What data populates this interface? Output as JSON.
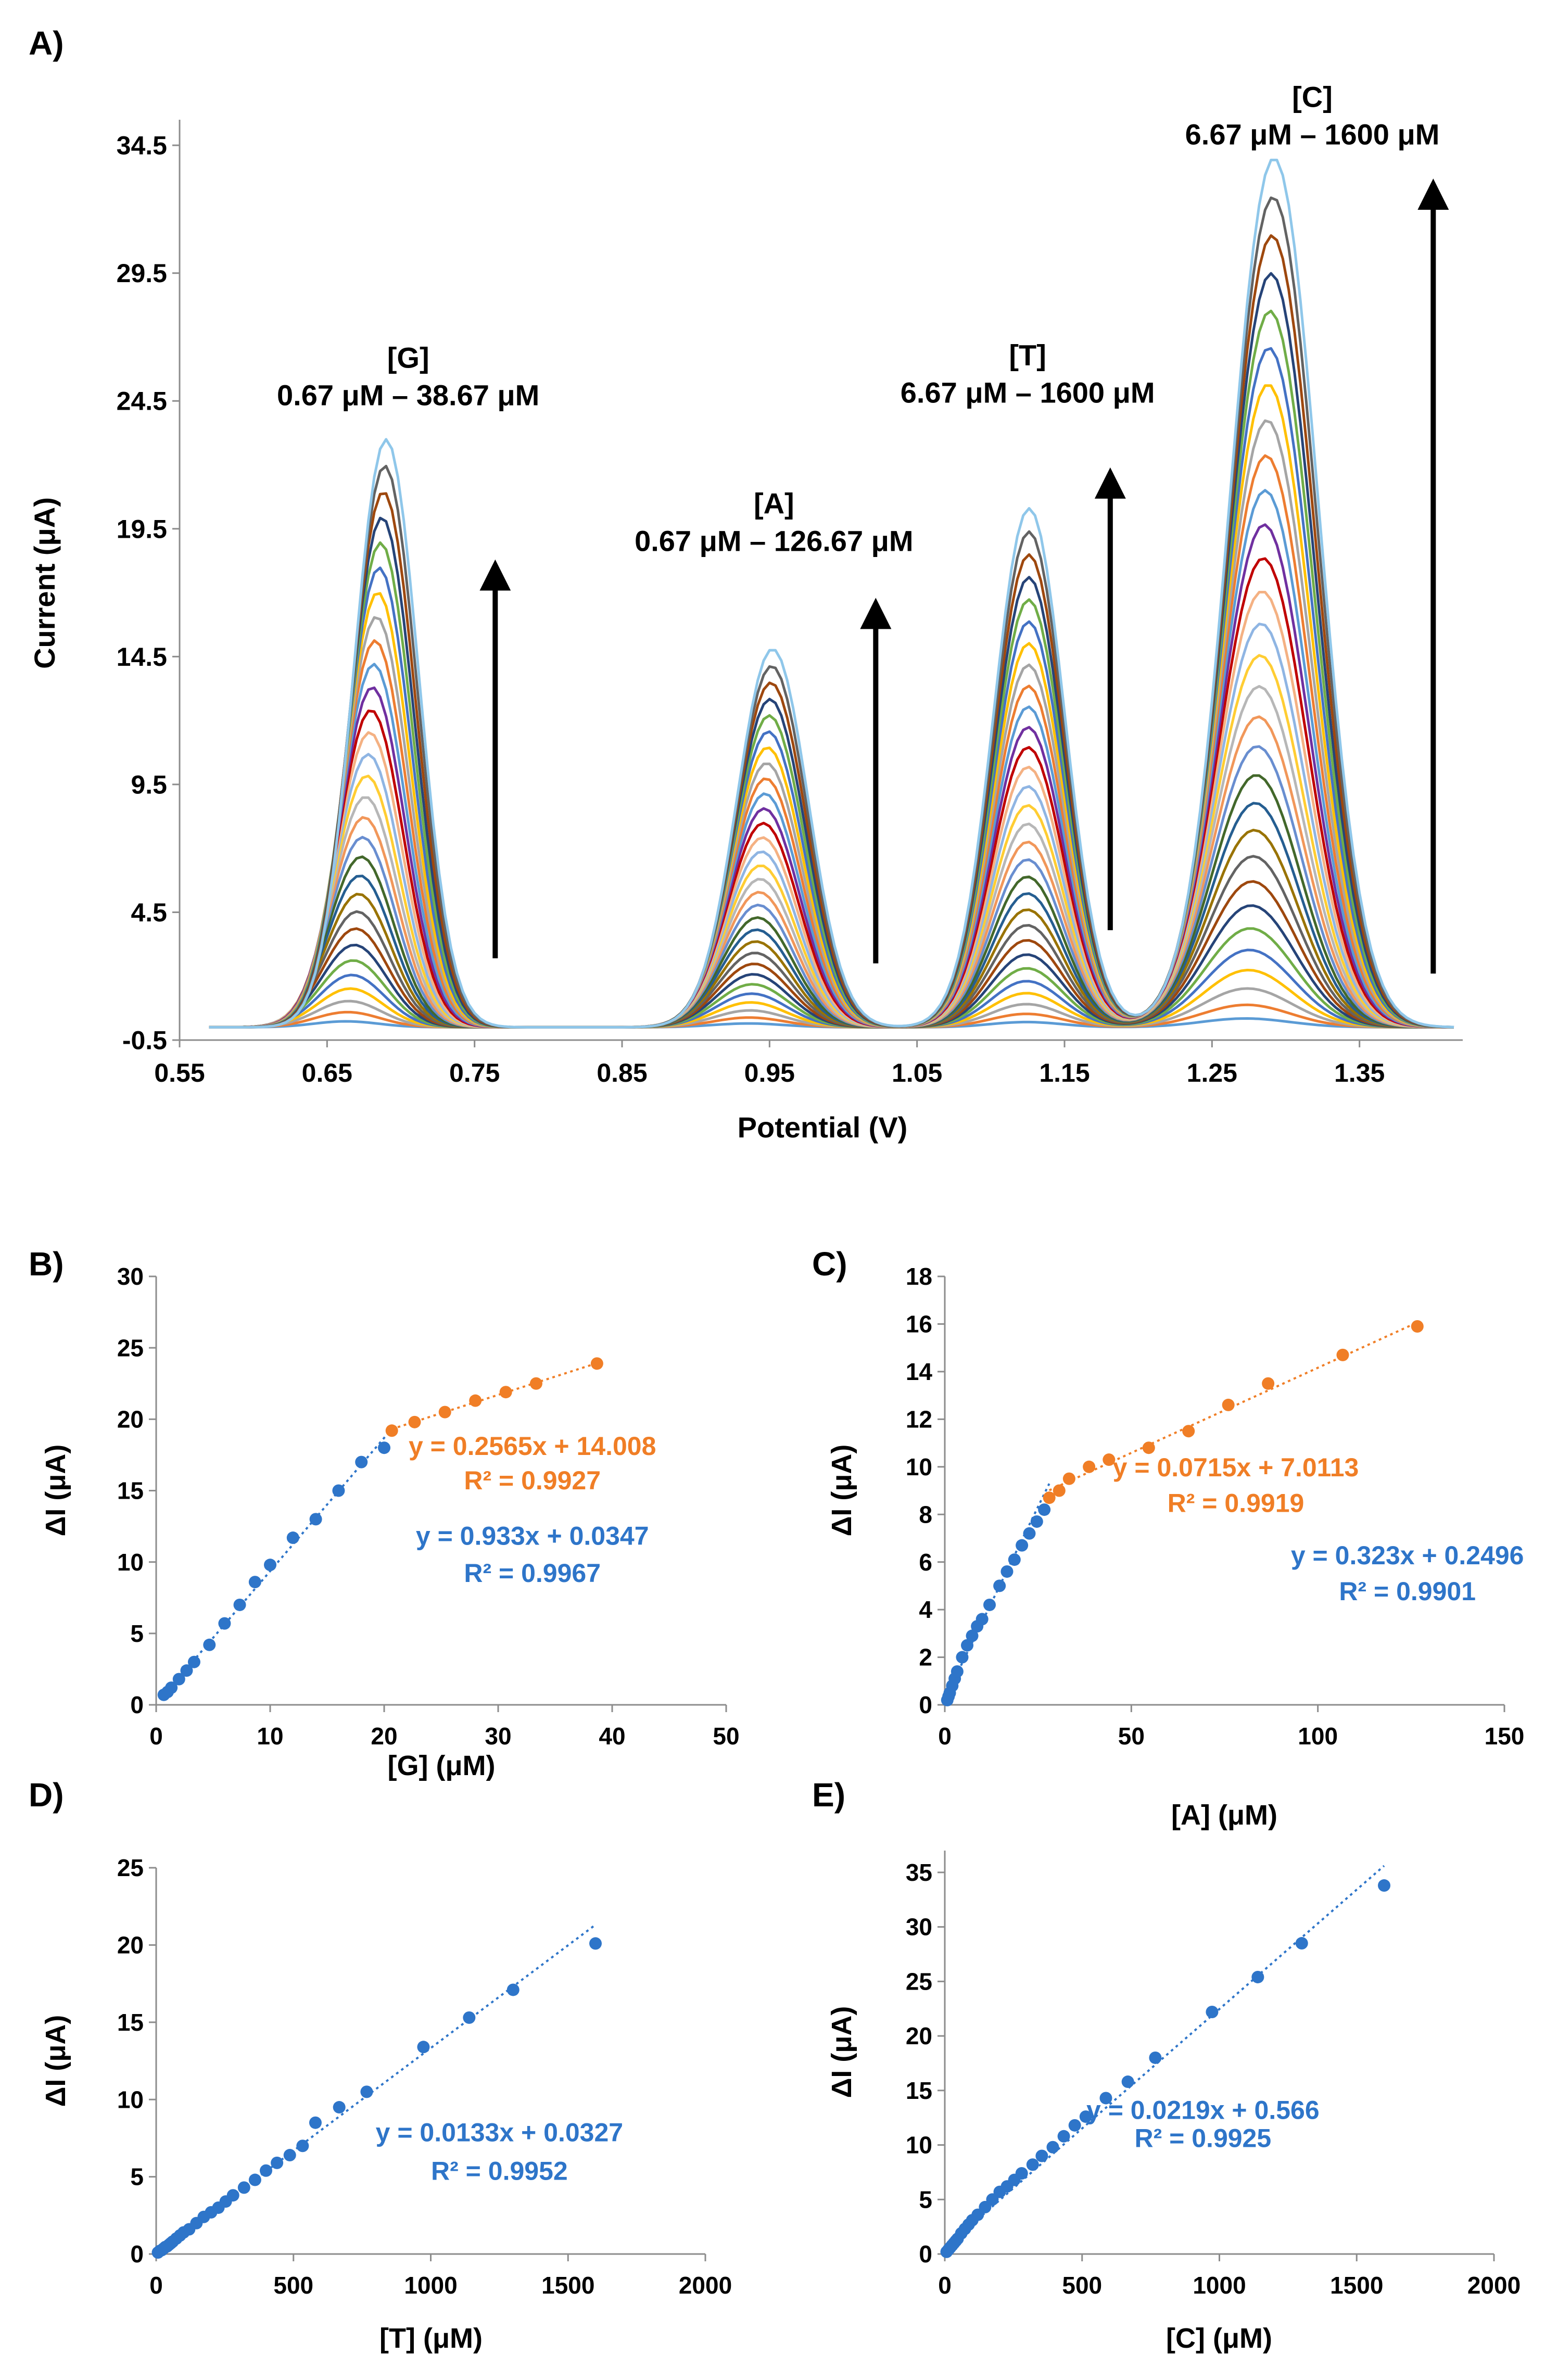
{
  "figure": {
    "panel_labels": [
      "A)",
      "B)",
      "C)",
      "D)",
      "E)"
    ]
  },
  "colors": {
    "blue": "#2E75C9",
    "orange": "#F07E26",
    "axis": "#8C8C8C",
    "text": "#000000",
    "curve_palette": [
      "#5B9BD5",
      "#ED7D31",
      "#A5A5A5",
      "#FFC000",
      "#4472C4",
      "#70AD47",
      "#264478",
      "#9E480E",
      "#636363",
      "#997300",
      "#255E91",
      "#43682B",
      "#698ED0",
      "#F1975A",
      "#B7B7B7",
      "#FFCD33",
      "#8FB5E3",
      "#F4B183",
      "#C00000",
      "#7030A0"
    ]
  },
  "chart_data": [
    {
      "id": "A",
      "type": "line",
      "panel_label": "A)",
      "title": "",
      "xlabel": "Potential (V)",
      "ylabel": "Current (μA)",
      "xlim": [
        0.55,
        1.42
      ],
      "ylim": [
        -0.5,
        35.5
      ],
      "x_ticks": [
        0.55,
        0.65,
        0.75,
        0.85,
        0.95,
        1.05,
        1.15,
        1.25,
        1.35
      ],
      "x_tick_labels": [
        "0.55",
        "0.65",
        "0.75",
        "0.85",
        "0.95",
        "1.05",
        "1.15",
        "1.25",
        "1.35"
      ],
      "y_ticks": [
        -0.5,
        4.5,
        9.5,
        14.5,
        19.5,
        24.5,
        29.5,
        34.5
      ],
      "y_tick_labels": [
        "-0.5",
        "4.5",
        "9.5",
        "14.5",
        "19.5",
        "24.5",
        "29.5",
        "34.5"
      ],
      "num_curves": 30,
      "peaks": [
        {
          "name": "G",
          "center_start": 0.662,
          "center_end": 0.69,
          "sigma": 0.022,
          "max_height": 23.0
        },
        {
          "name": "A",
          "center_start": 0.935,
          "center_end": 0.952,
          "sigma": 0.024,
          "max_height": 14.8
        },
        {
          "name": "T",
          "center_start": 1.124,
          "center_end": 1.126,
          "sigma": 0.024,
          "max_height": 20.3
        },
        {
          "name": "C",
          "center_start": 1.272,
          "center_end": 1.292,
          "sigma": 0.03,
          "max_height": 34.0
        }
      ],
      "annotations": [
        {
          "line1": "[G]",
          "line2": "0.67 μM – 38.67 μM",
          "x": 0.705,
          "y": 25.8
        },
        {
          "line1": "[A]",
          "line2": "0.67 μM – 126.67 μM",
          "x": 0.953,
          "y": 20.1
        },
        {
          "line1": "[T]",
          "line2": "6.67 μM – 1600 μM",
          "x": 1.125,
          "y": 25.9
        },
        {
          "line1": "[C]",
          "line2": "6.67 μM – 1600 μM",
          "x": 1.318,
          "y": 36.0
        }
      ],
      "arrows": [
        {
          "x": 0.764,
          "y_from": 2.7,
          "y_to": 18.3
        },
        {
          "x": 1.022,
          "y_from": 2.5,
          "y_to": 16.8
        },
        {
          "x": 1.181,
          "y_from": 3.8,
          "y_to": 21.9
        },
        {
          "x": 1.4,
          "y_from": 2.1,
          "y_to": 33.2
        }
      ]
    },
    {
      "id": "B",
      "type": "scatter",
      "panel_label": "B)",
      "xlabel": "[G] (μM)",
      "ylabel": "ΔI  (μA)",
      "xlim": [
        0,
        50
      ],
      "ylim": [
        0,
        30
      ],
      "x_ticks": [
        0,
        10,
        20,
        30,
        40,
        50
      ],
      "x_tick_labels": [
        "0",
        "10",
        "20",
        "30",
        "40",
        "50"
      ],
      "y_ticks": [
        0,
        5,
        10,
        15,
        20,
        25,
        30
      ],
      "y_tick_labels": [
        "0",
        "5",
        "10",
        "15",
        "20",
        "25",
        "30"
      ],
      "series": [
        {
          "name": "low",
          "color": "#2E75C9",
          "x": [
            0.67,
            1.0,
            1.33,
            2.0,
            2.67,
            3.33,
            4.67,
            6.0,
            7.33,
            8.67,
            10.0,
            12.0,
            14.0,
            16.0,
            18.0,
            20.0
          ],
          "y": [
            0.7,
            0.9,
            1.2,
            1.8,
            2.4,
            3.0,
            4.2,
            5.7,
            7.0,
            8.6,
            9.8,
            11.7,
            13.0,
            15.0,
            17.0,
            18.0
          ],
          "fit_x": [
            0.67,
            20.8
          ],
          "slope": 0.933,
          "intercept": 0.0347
        },
        {
          "name": "high",
          "color": "#F07E26",
          "x": [
            20.67,
            22.67,
            25.33,
            28.0,
            30.67,
            33.33,
            38.67
          ],
          "y": [
            19.2,
            19.8,
            20.5,
            21.3,
            21.9,
            22.5,
            23.9
          ],
          "fit_x": [
            20.67,
            38.67
          ],
          "slope": 0.2565,
          "intercept": 14.008
        }
      ],
      "equations": [
        {
          "line1": "y = 0.2565x + 14.008",
          "line2": "R² = 0.9927",
          "color": "#F07E26",
          "x": 33.0,
          "y1": 17.5,
          "y2": 15.1
        },
        {
          "line1": "y = 0.933x + 0.0347",
          "line2": "R² = 0.9967",
          "color": "#2E75C9",
          "x": 33.0,
          "y1": 11.2,
          "y2": 8.6
        }
      ]
    },
    {
      "id": "C",
      "type": "scatter",
      "panel_label": "C)",
      "xlabel": "[A] (μM)",
      "ylabel": "ΔI (μA)",
      "xlim": [
        0,
        150
      ],
      "ylim": [
        0,
        18
      ],
      "x_ticks": [
        0,
        50,
        100,
        150
      ],
      "x_tick_labels": [
        "0",
        "50",
        "100",
        "150"
      ],
      "y_ticks": [
        0,
        2,
        4,
        6,
        8,
        10,
        12,
        14,
        16,
        18
      ],
      "y_tick_labels": [
        "0",
        "2",
        "4",
        "6",
        "8",
        "10",
        "12",
        "14",
        "16",
        "18"
      ],
      "series": [
        {
          "name": "low",
          "color": "#2E75C9",
          "x": [
            0.67,
            1.0,
            1.33,
            2.0,
            2.67,
            3.33,
            4.67,
            6.0,
            7.33,
            8.67,
            10.0,
            12.0,
            14.67,
            16.67,
            18.67,
            20.67,
            22.67,
            24.67,
            26.67
          ],
          "y": [
            0.2,
            0.35,
            0.5,
            0.8,
            1.1,
            1.4,
            2.0,
            2.5,
            2.9,
            3.3,
            3.6,
            4.2,
            5.0,
            5.6,
            6.1,
            6.7,
            7.2,
            7.7,
            8.2
          ],
          "fit_x": [
            0.67,
            28.0
          ],
          "slope": 0.323,
          "intercept": 0.2496
        },
        {
          "name": "high",
          "color": "#F07E26",
          "x": [
            28.0,
            30.67,
            33.33,
            38.67,
            44.0,
            54.67,
            65.33,
            76.0,
            86.67,
            106.67,
            126.67
          ],
          "y": [
            8.7,
            9.0,
            9.5,
            10.0,
            10.3,
            10.8,
            11.5,
            12.6,
            13.5,
            14.7,
            15.9
          ],
          "fit_x": [
            28.0,
            126.67
          ],
          "slope": 0.0715,
          "intercept": 7.0113
        }
      ],
      "equations": [
        {
          "line1": "y = 0.0715x + 7.0113",
          "line2": "R² = 0.9919",
          "color": "#F07E26",
          "x": 78.0,
          "y1": 9.6,
          "y2": 8.1
        },
        {
          "line1": "y = 0.323x + 0.2496",
          "line2": "R² = 0.9901",
          "color": "#2E75C9",
          "x": 124.0,
          "y1": 5.9,
          "y2": 4.4
        }
      ]
    },
    {
      "id": "D",
      "type": "scatter",
      "panel_label": "D)",
      "xlabel": "[T] (μM)",
      "ylabel": "ΔI (μA)",
      "xlim": [
        0,
        2000
      ],
      "ylim": [
        0,
        25
      ],
      "x_ticks": [
        0,
        500,
        1000,
        1500,
        2000
      ],
      "x_tick_labels": [
        "0",
        "500",
        "1000",
        "1500",
        "2000"
      ],
      "y_ticks": [
        0,
        5,
        10,
        15,
        20,
        25
      ],
      "y_tick_labels": [
        "0",
        "5",
        "10",
        "15",
        "20",
        "25"
      ],
      "series": [
        {
          "name": "all",
          "color": "#2E75C9",
          "x": [
            6.67,
            13.33,
            20,
            26.67,
            33.33,
            40,
            46.67,
            53.33,
            60,
            73.33,
            86.67,
            100,
            120,
            146.67,
            173.33,
            200,
            226.67,
            253.33,
            280,
            320,
            360,
            400,
            440,
            486.67,
            533.33,
            580,
            666.67,
            766.67,
            973.33,
            1140,
            1300,
            1600
          ],
          "y": [
            0.1,
            0.2,
            0.25,
            0.35,
            0.45,
            0.5,
            0.6,
            0.7,
            0.8,
            1.0,
            1.2,
            1.4,
            1.6,
            2.0,
            2.4,
            2.7,
            3.0,
            3.4,
            3.8,
            4.3,
            4.8,
            5.4,
            5.9,
            6.4,
            7.0,
            8.5,
            9.5,
            10.5,
            13.4,
            15.3,
            17.1,
            20.1
          ],
          "fit_x": [
            0,
            1600
          ],
          "slope": 0.0133,
          "intercept": 0.0327
        }
      ],
      "equations": [
        {
          "line1": "y = 0.0133x + 0.0327",
          "line2": "R² = 0.9952",
          "color": "#2E75C9",
          "x": 1250,
          "y1": 7.3,
          "y2": 4.8
        }
      ]
    },
    {
      "id": "E",
      "type": "scatter",
      "panel_label": "E)",
      "xlabel": "[C] (μM)",
      "ylabel": "ΔI (μA)",
      "xlim": [
        0,
        2000
      ],
      "ylim": [
        0,
        37
      ],
      "x_ticks": [
        0,
        500,
        1000,
        1500,
        2000
      ],
      "x_tick_labels": [
        "0",
        "500",
        "1000",
        "1500",
        "2000"
      ],
      "y_ticks": [
        0,
        5,
        10,
        15,
        20,
        25,
        30,
        35
      ],
      "y_tick_labels": [
        "0",
        "5",
        "10",
        "15",
        "20",
        "25",
        "30",
        "35"
      ],
      "series": [
        {
          "name": "all",
          "color": "#2E75C9",
          "x": [
            6.67,
            13.33,
            20,
            26.67,
            33.33,
            40,
            46.67,
            60,
            73.33,
            86.67,
            100,
            120,
            146.67,
            173.33,
            200,
            226.67,
            253.33,
            280,
            320,
            353.33,
            393.33,
            433.33,
            473.33,
            513.33,
            586.67,
            666.67,
            766.67,
            973.33,
            1140,
            1300,
            1600
          ],
          "y": [
            0.2,
            0.4,
            0.6,
            0.8,
            1.0,
            1.2,
            1.4,
            1.9,
            2.3,
            2.7,
            3.1,
            3.6,
            4.3,
            5.0,
            5.7,
            6.2,
            6.8,
            7.4,
            8.2,
            9.0,
            9.8,
            10.8,
            11.8,
            12.6,
            14.3,
            15.8,
            18.0,
            22.2,
            25.4,
            28.5,
            33.8
          ],
          "fit_x": [
            0,
            1600
          ],
          "slope": 0.0219,
          "intercept": 0.566
        }
      ],
      "equations": [
        {
          "line1": "y = 0.0219x + 0.566",
          "line2": "R² = 0.9925",
          "color": "#2E75C9",
          "x": 940,
          "y1": 12.4,
          "y2": 9.8
        }
      ]
    }
  ]
}
